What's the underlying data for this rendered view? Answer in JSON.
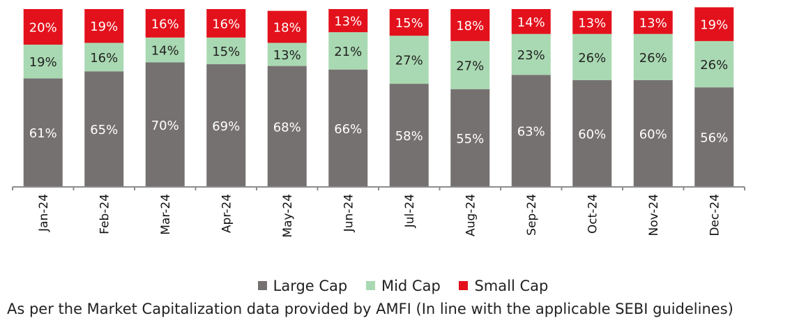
{
  "chart_data": {
    "type": "bar",
    "stacked": true,
    "categories": [
      "Jan-24",
      "Feb-24",
      "Mar-24",
      "Apr-24",
      "May-24",
      "Jun-24",
      "Jul-24",
      "Aug-24",
      "Sep-24",
      "Oct-24",
      "Nov-24",
      "Dec-24"
    ],
    "series": [
      {
        "name": "Large Cap",
        "color": "#767171",
        "values": [
          61,
          65,
          70,
          69,
          68,
          66,
          58,
          55,
          63,
          60,
          60,
          56
        ]
      },
      {
        "name": "Mid Cap",
        "color": "#a9d9b2",
        "values": [
          19,
          16,
          14,
          15,
          13,
          21,
          27,
          27,
          23,
          26,
          26,
          26
        ]
      },
      {
        "name": "Small Cap",
        "color": "#e3111c",
        "values": [
          20,
          19,
          16,
          16,
          18,
          13,
          15,
          18,
          14,
          13,
          13,
          19
        ]
      }
    ],
    "value_suffix": "%",
    "ylim": [
      0,
      100
    ],
    "grid": false,
    "legend_position": "bottom",
    "label_colors": {
      "Large Cap": "#ffffff",
      "Mid Cap": "#222222",
      "Small Cap": "#ffffff"
    }
  },
  "footnote": "As per the Market Capitalization data provided by AMFI (In line with the applicable SEBI guidelines)"
}
